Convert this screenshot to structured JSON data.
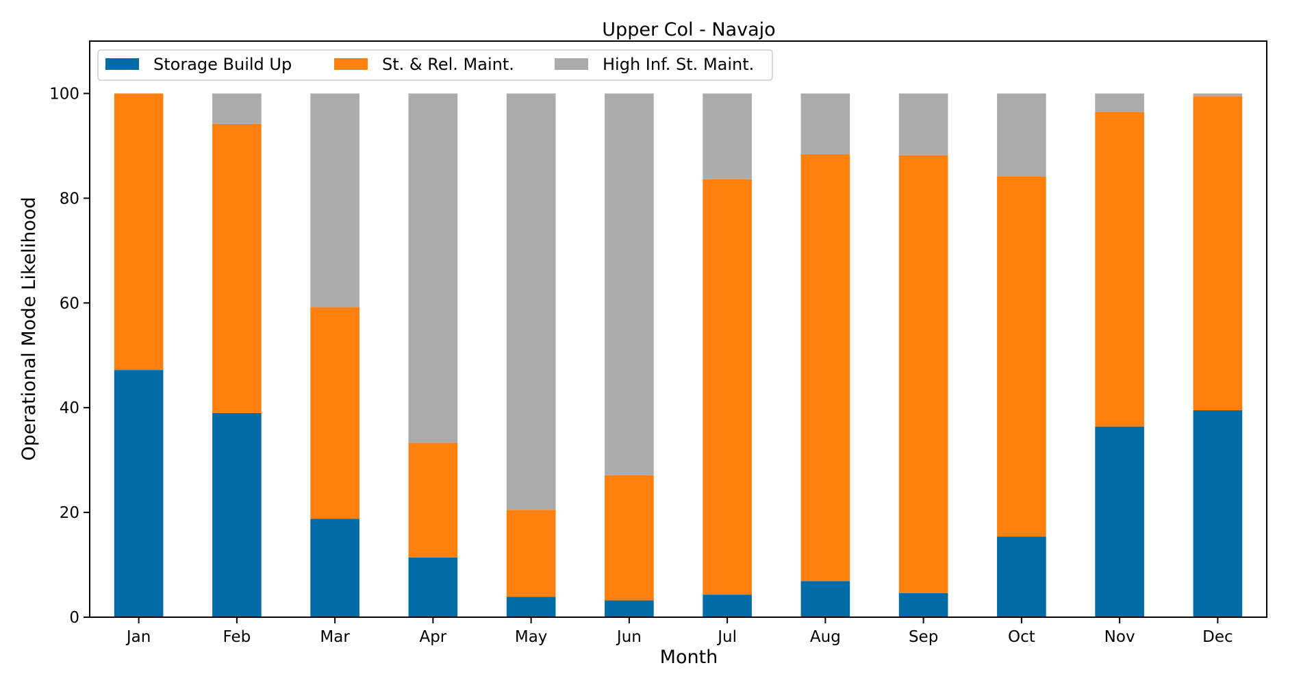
{
  "chart_data": {
    "type": "bar",
    "stacked": true,
    "title": "Upper Col - Navajo",
    "xlabel": "Month",
    "ylabel": "Operational Mode Likelihood",
    "categories": [
      "Jan",
      "Feb",
      "Mar",
      "Apr",
      "May",
      "Jun",
      "Jul",
      "Aug",
      "Sep",
      "Oct",
      "Nov",
      "Dec"
    ],
    "ylim": [
      0,
      110
    ],
    "yticks": [
      0,
      20,
      40,
      60,
      80,
      100
    ],
    "grid": false,
    "legend_position": "top-left",
    "series": [
      {
        "name": "Storage Build Up",
        "color": "#006BA4",
        "values": [
          47.2,
          39.0,
          18.8,
          11.4,
          3.9,
          3.2,
          4.3,
          6.9,
          4.6,
          15.4,
          36.4,
          39.5
        ]
      },
      {
        "name": "St. & Rel. Maint.",
        "color": "#FF800E",
        "values": [
          52.8,
          55.2,
          40.4,
          21.9,
          16.6,
          23.9,
          79.3,
          81.5,
          83.6,
          68.7,
          60.0,
          60.0
        ]
      },
      {
        "name": "High Inf. St. Maint.",
        "color": "#ABABAB",
        "values": [
          0.0,
          5.8,
          40.8,
          66.7,
          79.5,
          72.9,
          16.4,
          11.6,
          11.8,
          15.9,
          3.6,
          0.5
        ]
      }
    ]
  }
}
